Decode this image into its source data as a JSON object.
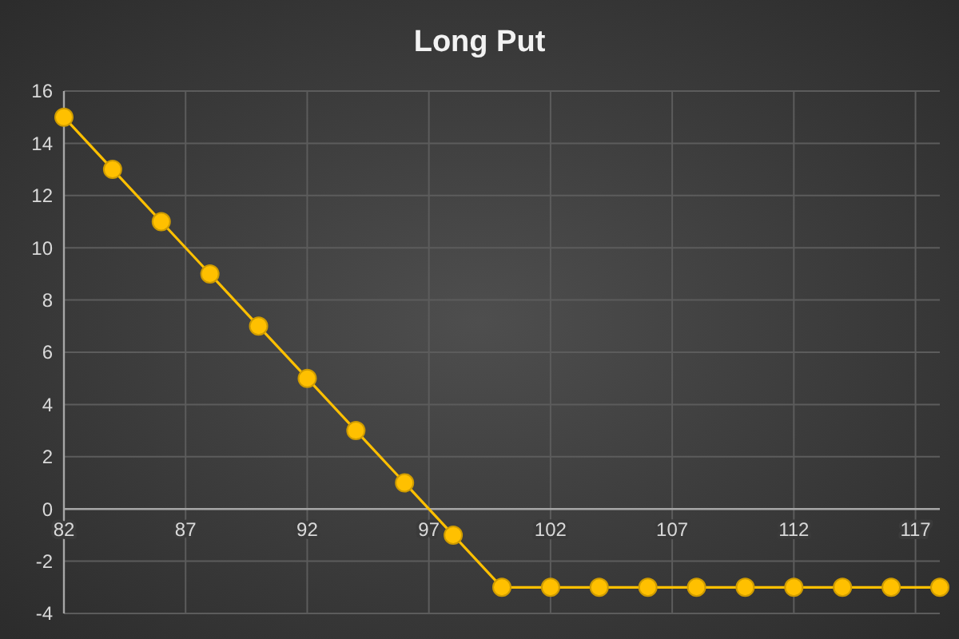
{
  "chart_data": {
    "type": "line",
    "title": "Long Put",
    "x": [
      82,
      84,
      86,
      88,
      90,
      92,
      94,
      96,
      98,
      100,
      102,
      104,
      106,
      108,
      110,
      112,
      114,
      116,
      118
    ],
    "series": [
      {
        "color": "#ffc000",
        "values": [
          15,
          13,
          11,
          9,
          7,
          5,
          3,
          1,
          -1,
          -3,
          -3,
          -3,
          -3,
          -3,
          -3,
          -3,
          -3,
          -3,
          -3
        ]
      }
    ],
    "xlim": [
      82,
      118
    ],
    "xticks": [
      82,
      87,
      92,
      97,
      102,
      107,
      112,
      117
    ],
    "ylim": [
      -4,
      16
    ],
    "yticks": [
      -4,
      -2,
      0,
      2,
      4,
      6,
      8,
      10,
      12,
      14,
      16
    ],
    "grid": true,
    "marker": "circle",
    "line_style": "solid"
  }
}
